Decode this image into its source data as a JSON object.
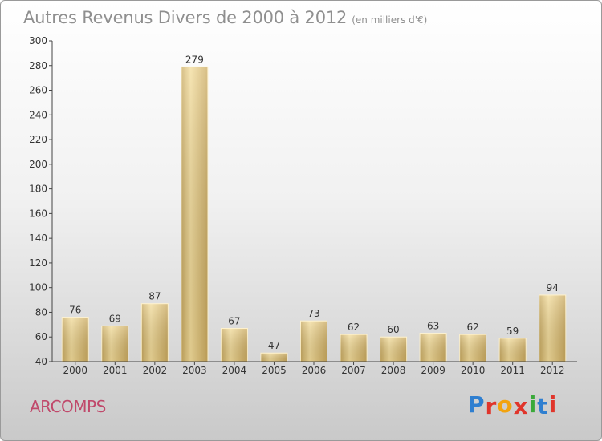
{
  "header": {
    "title": "Autres Revenus Divers de 2000 à 2012",
    "unit": "(en milliers d'€)"
  },
  "commune": "ARCOMPS",
  "logo": {
    "letters": [
      "P",
      "r",
      "o",
      "x",
      "i",
      "t",
      "i"
    ],
    "colors": [
      "#2f7fd0",
      "#e0352b",
      "#f2a30f",
      "#e0352b",
      "#3aa93a",
      "#2f7fd0",
      "#e0352b"
    ]
  },
  "chart_data": {
    "type": "bar",
    "categories": [
      "2000",
      "2001",
      "2002",
      "2003",
      "2004",
      "2005",
      "2006",
      "2007",
      "2008",
      "2009",
      "2010",
      "2011",
      "2012"
    ],
    "values": [
      76,
      69,
      87,
      279,
      67,
      47,
      73,
      62,
      60,
      63,
      62,
      59,
      94
    ],
    "value_labels": [
      "76",
      "69",
      "87",
      "279",
      "67",
      "47",
      "73",
      "62",
      "60",
      "63",
      "62",
      "59",
      "94"
    ],
    "title": "Autres Revenus Divers de 2000 à 2012",
    "xlabel": "",
    "ylabel": "",
    "ylim": [
      40,
      300
    ],
    "yticks": [
      40,
      60,
      80,
      100,
      120,
      140,
      160,
      180,
      200,
      220,
      240,
      260,
      280,
      300
    ],
    "ytick_labels": [
      "40",
      "60",
      "80",
      "100",
      "120",
      "140",
      "160",
      "180",
      "200",
      "220",
      "240",
      "260",
      "280",
      "300"
    ],
    "grid": false,
    "bar_color": "#e8c97e"
  }
}
